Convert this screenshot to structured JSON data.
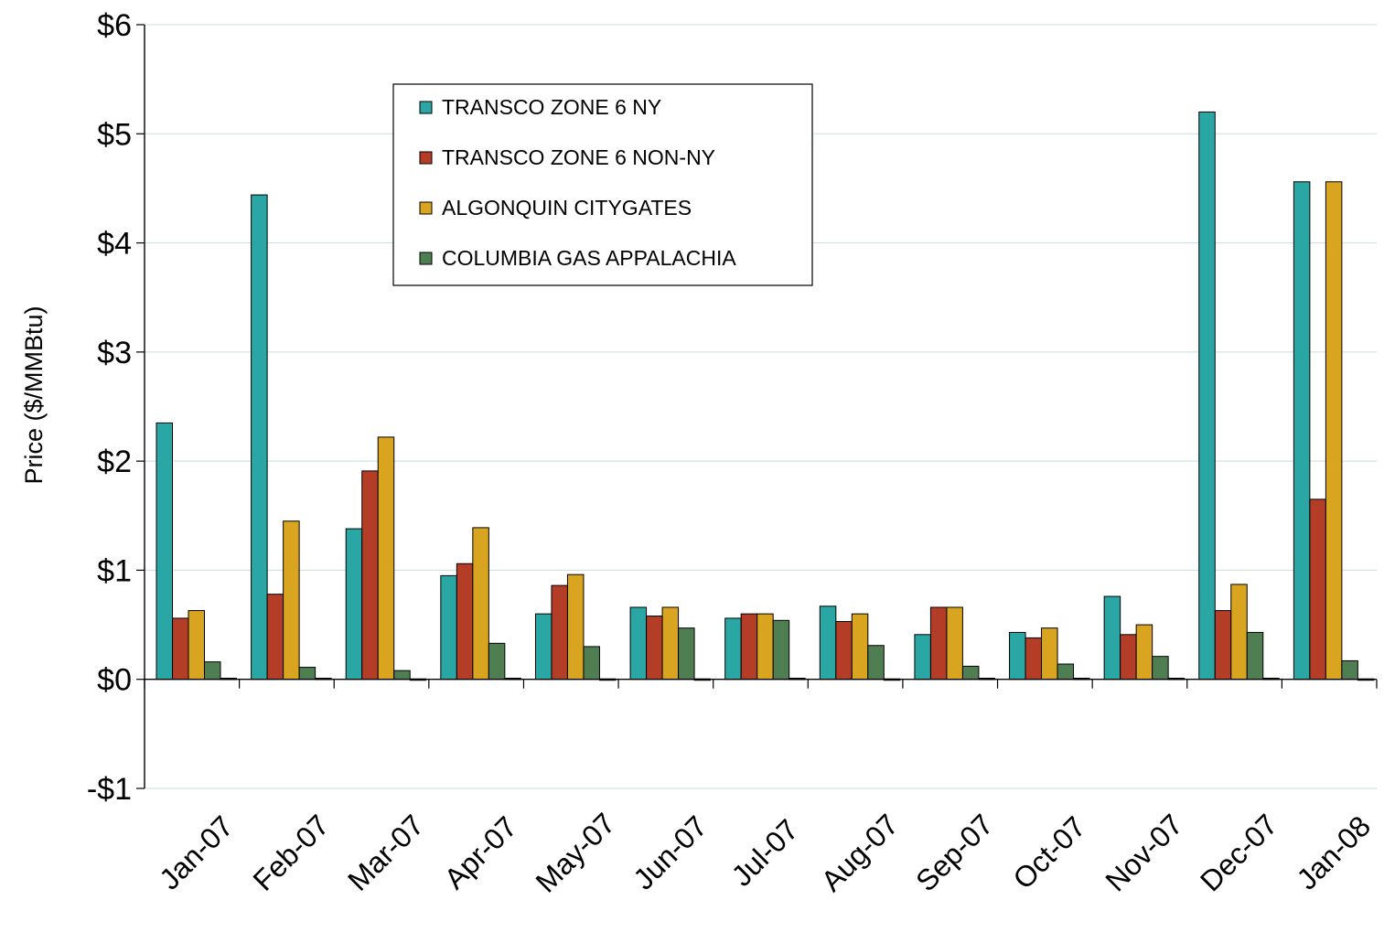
{
  "chart_data": {
    "type": "bar",
    "title": "",
    "xlabel": "",
    "ylabel": "Price  ($/MMBtu)",
    "ylim": [
      -1,
      6
    ],
    "yticks": [
      -1,
      0,
      1,
      2,
      3,
      4,
      5,
      6
    ],
    "ytick_labels": [
      "-$1",
      "$0",
      "$1",
      "$2",
      "$3",
      "$4",
      "$5",
      "$6"
    ],
    "grid": true,
    "legend_position": "top-center",
    "categories": [
      "Jan-07",
      "Feb-07",
      "Mar-07",
      "Apr-07",
      "May-07",
      "Jun-07",
      "Jul-07",
      "Aug-07",
      "Sep-07",
      "Oct-07",
      "Nov-07",
      "Dec-07",
      "Jan-08"
    ],
    "series": [
      {
        "name": "TRANSCO ZONE 6 NY",
        "color": "#2aa6a4",
        "values": [
          2.35,
          4.44,
          1.38,
          0.95,
          0.6,
          0.66,
          0.56,
          0.67,
          0.41,
          0.43,
          0.76,
          5.2,
          4.56
        ]
      },
      {
        "name": "TRANSCO ZONE 6 NON-NY",
        "color": "#b33d26",
        "values": [
          0.56,
          0.78,
          1.91,
          1.06,
          0.86,
          0.58,
          0.6,
          0.53,
          0.66,
          0.38,
          0.41,
          0.63,
          1.65
        ]
      },
      {
        "name": "ALGONQUIN CITYGATES",
        "color": "#d9a521",
        "values": [
          0.63,
          1.45,
          2.22,
          1.39,
          0.96,
          0.66,
          0.6,
          0.6,
          0.66,
          0.47,
          0.5,
          0.87,
          4.56
        ]
      },
      {
        "name": "COLUMBIA GAS APPALACHIA",
        "color": "#4e7e52",
        "values": [
          0.16,
          0.11,
          0.08,
          0.33,
          0.3,
          0.47,
          0.54,
          0.31,
          0.12,
          0.14,
          0.21,
          0.43,
          0.17
        ]
      },
      {
        "name": "",
        "color": "#2b6b5e",
        "values": [
          0.01,
          0.01,
          0,
          0.01,
          0,
          0,
          0.01,
          0,
          0.01,
          0.01,
          0.01,
          0.01,
          0
        ]
      }
    ]
  }
}
